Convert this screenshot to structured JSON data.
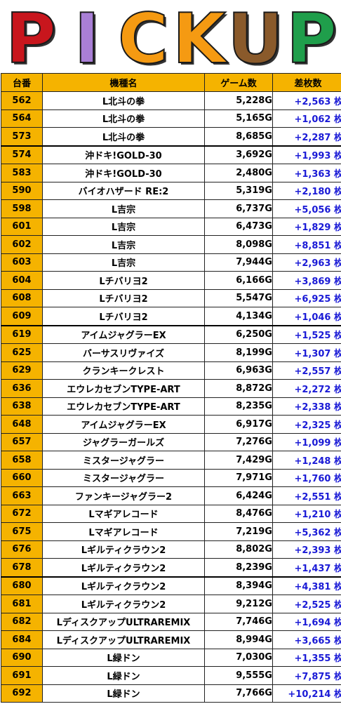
{
  "banner": {
    "text": "PICKUP",
    "letter_colors": [
      "#c8161d",
      "#a97fd6",
      "#f59a12",
      "#f59a12",
      "#8a5a2b",
      "#1f9e4b"
    ]
  },
  "table": {
    "headers": {
      "number": "台番",
      "model": "機種名",
      "games": "ゲーム数",
      "diff": "差枚数"
    },
    "unit": "枚",
    "rows": [
      {
        "number": "562",
        "model": "L北斗の拳",
        "games": "5,228G",
        "diff": "+2,563"
      },
      {
        "number": "564",
        "model": "L北斗の拳",
        "games": "5,165G",
        "diff": "+1,062"
      },
      {
        "number": "573",
        "model": "L北斗の拳",
        "games": "8,685G",
        "diff": "+2,287"
      },
      {
        "number": "574",
        "model": "沖ドキ!GOLD-30",
        "games": "3,692G",
        "diff": "+1,993"
      },
      {
        "number": "583",
        "model": "沖ドキ!GOLD-30",
        "games": "2,480G",
        "diff": "+1,363"
      },
      {
        "number": "590",
        "model": "バイオハザード RE:2",
        "games": "5,319G",
        "diff": "+2,180"
      },
      {
        "number": "598",
        "model": "L吉宗",
        "games": "6,737G",
        "diff": "+5,056"
      },
      {
        "number": "601",
        "model": "L吉宗",
        "games": "6,473G",
        "diff": "+1,829"
      },
      {
        "number": "602",
        "model": "L吉宗",
        "games": "8,098G",
        "diff": "+8,851"
      },
      {
        "number": "603",
        "model": "L吉宗",
        "games": "7,944G",
        "diff": "+2,963"
      },
      {
        "number": "604",
        "model": "Lチバリヨ2",
        "games": "6,166G",
        "diff": "+3,869"
      },
      {
        "number": "608",
        "model": "Lチバリヨ2",
        "games": "5,547G",
        "diff": "+6,925"
      },
      {
        "number": "609",
        "model": "Lチバリヨ2",
        "games": "4,134G",
        "diff": "+1,046"
      },
      {
        "number": "619",
        "model": "アイムジャグラーEX",
        "games": "6,250G",
        "diff": "+1,525"
      },
      {
        "number": "625",
        "model": "バーサスリヴァイズ",
        "games": "8,199G",
        "diff": "+1,307"
      },
      {
        "number": "629",
        "model": "クランキークレスト",
        "games": "6,963G",
        "diff": "+2,557"
      },
      {
        "number": "636",
        "model": "エウレカセブンTYPE-ART",
        "games": "8,872G",
        "diff": "+2,272"
      },
      {
        "number": "638",
        "model": "エウレカセブンTYPE-ART",
        "games": "8,235G",
        "diff": "+2,338"
      },
      {
        "number": "648",
        "model": "アイムジャグラーEX",
        "games": "6,917G",
        "diff": "+2,325"
      },
      {
        "number": "657",
        "model": "ジャグラーガールズ",
        "games": "7,276G",
        "diff": "+1,099"
      },
      {
        "number": "658",
        "model": "ミスタージャグラー",
        "games": "7,429G",
        "diff": "+1,248"
      },
      {
        "number": "660",
        "model": "ミスタージャグラー",
        "games": "7,971G",
        "diff": "+1,760"
      },
      {
        "number": "663",
        "model": "ファンキージャグラー2",
        "games": "6,424G",
        "diff": "+2,551"
      },
      {
        "number": "672",
        "model": "Lマギアレコード",
        "games": "8,476G",
        "diff": "+1,210"
      },
      {
        "number": "675",
        "model": "Lマギアレコード",
        "games": "7,219G",
        "diff": "+5,362"
      },
      {
        "number": "676",
        "model": "Lギルティクラウン2",
        "games": "8,802G",
        "diff": "+2,393"
      },
      {
        "number": "678",
        "model": "Lギルティクラウン2",
        "games": "8,239G",
        "diff": "+1,437"
      },
      {
        "number": "680",
        "model": "Lギルティクラウン2",
        "games": "8,394G",
        "diff": "+4,381"
      },
      {
        "number": "681",
        "model": "Lギルティクラウン2",
        "games": "9,212G",
        "diff": "+2,525"
      },
      {
        "number": "682",
        "model": "LディスクアップULTRAREMIX",
        "games": "7,746G",
        "diff": "+1,694"
      },
      {
        "number": "684",
        "model": "LディスクアップULTRAREMIX",
        "games": "8,994G",
        "diff": "+3,665"
      },
      {
        "number": "690",
        "model": "L緑ドン",
        "games": "7,030G",
        "diff": "+1,355"
      },
      {
        "number": "691",
        "model": "L緑ドン",
        "games": "9,555G",
        "diff": "+7,875"
      },
      {
        "number": "692",
        "model": "L緑ドン",
        "games": "7,766G",
        "diff": "+10,214"
      }
    ]
  }
}
